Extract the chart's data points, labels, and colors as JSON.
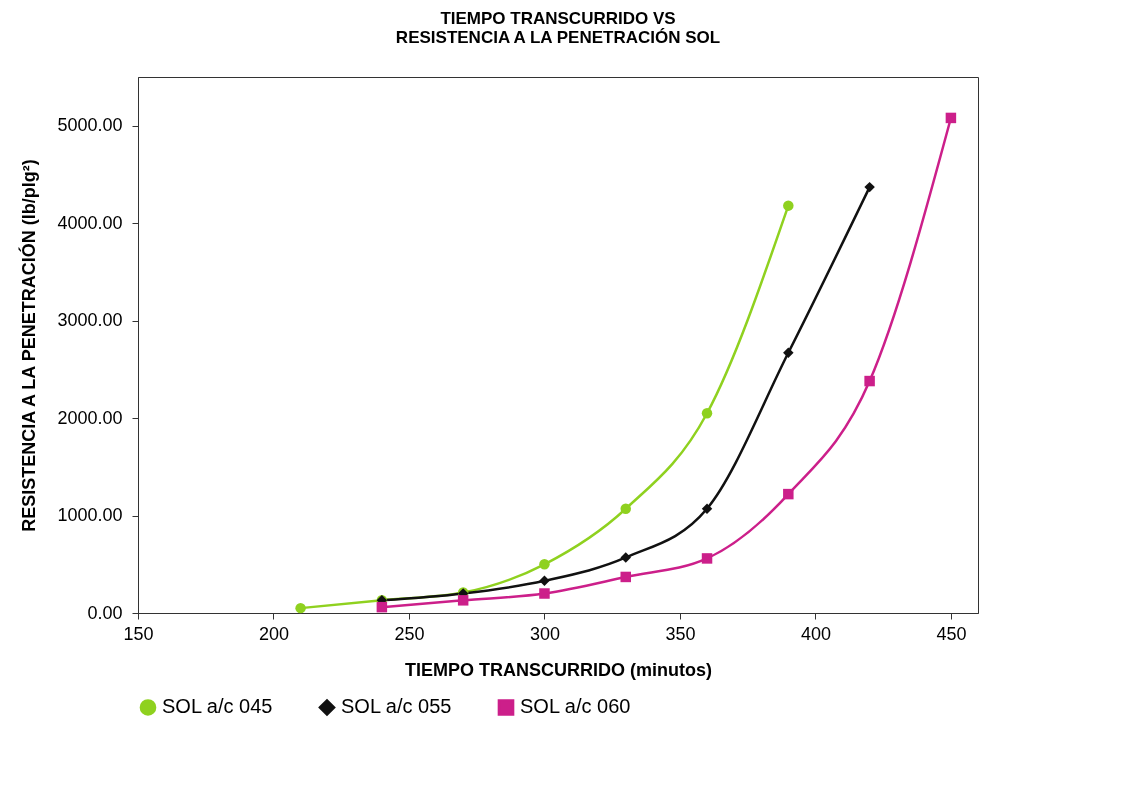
{
  "chart_data": {
    "type": "line",
    "title": "TIEMPO TRANSCURRIDO VS\nRESISTENCIA A LA PENETRACIÓN SOL",
    "xlabel": "TIEMPO TRANSCURRIDO (minutos)",
    "ylabel": "RESISTENCIA A LA PENETRACIÓN (lb/plg²)",
    "xlim": [
      150,
      460
    ],
    "xticks": [
      150,
      200,
      250,
      300,
      350,
      400,
      450
    ],
    "ylim": [
      0,
      5500
    ],
    "yticks": [
      {
        "value": 0,
        "label": "0.00"
      },
      {
        "value": 1000,
        "label": "1000.00"
      },
      {
        "value": 2000,
        "label": "2000.00"
      },
      {
        "value": 3000,
        "label": "3000.00"
      },
      {
        "value": 4000,
        "label": "4000.00"
      },
      {
        "value": 5000,
        "label": "5000.00"
      }
    ],
    "grid": false,
    "legend": "bottom",
    "series": [
      {
        "name": "SOL a/c 045",
        "color": "#8fd11f",
        "marker": "circle",
        "x": [
          210,
          240,
          270,
          300,
          330,
          360,
          390
        ],
        "values": [
          50,
          130,
          210,
          500,
          1070,
          2050,
          4180
        ]
      },
      {
        "name": "SOL a/c 055",
        "color": "#111111",
        "marker": "diamond",
        "x": [
          240,
          270,
          300,
          330,
          360,
          390,
          420
        ],
        "values": [
          130,
          200,
          330,
          570,
          1070,
          2670,
          4370
        ]
      },
      {
        "name": "SOL a/c 060",
        "color": "#cc1f8a",
        "marker": "square",
        "x": [
          240,
          270,
          300,
          330,
          360,
          390,
          420,
          450
        ],
        "values": [
          60,
          130,
          200,
          370,
          560,
          1220,
          2380,
          5080
        ]
      }
    ]
  }
}
